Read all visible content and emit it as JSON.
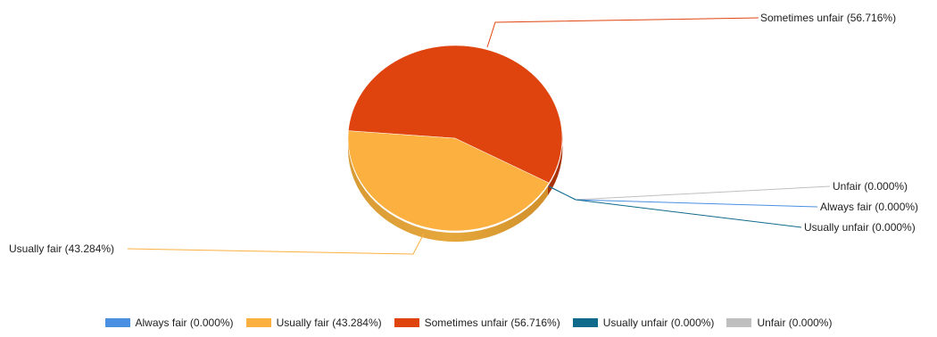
{
  "chart_data": {
    "type": "pie",
    "title": "",
    "legend_position": "bottom-center",
    "slices": [
      {
        "label": "Always fair (0.000%)",
        "value": 0.0,
        "color": "#4A90E2"
      },
      {
        "label": "Usually fair (43.284%)",
        "value": 43.284,
        "color": "#FBB040"
      },
      {
        "label": "Sometimes unfair (56.716%)",
        "value": 56.716,
        "color": "#E0440E"
      },
      {
        "label": "Usually unfair (0.000%)",
        "value": 0.0,
        "color": "#0F6A8B"
      },
      {
        "label": "Unfair (0.000%)",
        "value": 0.0,
        "color": "#BFBFBF"
      }
    ]
  }
}
